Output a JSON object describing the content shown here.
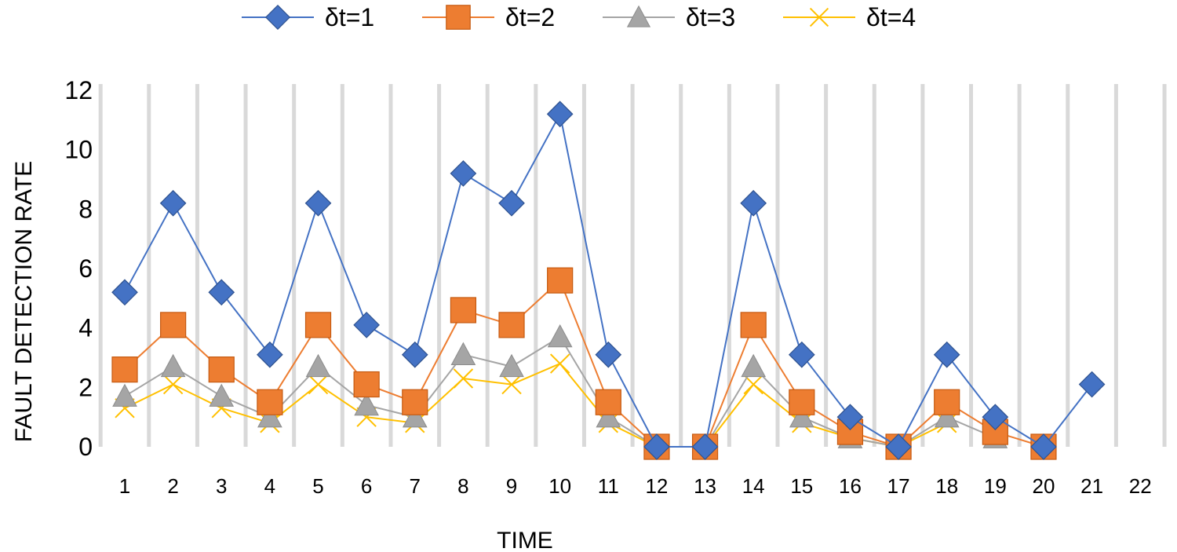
{
  "chart_data": {
    "type": "line",
    "title": "",
    "xlabel": "TIME",
    "ylabel": "FAULT DETECTION RATE",
    "ylim": [
      0,
      12
    ],
    "yticks": [
      0,
      2,
      4,
      6,
      8,
      10,
      12
    ],
    "x": [
      "1",
      "2",
      "3",
      "4",
      "5",
      "6",
      "7",
      "8",
      "9",
      "10",
      "11",
      "12",
      "13",
      "14",
      "15",
      "16",
      "17",
      "18",
      "19",
      "20",
      "21",
      "22"
    ],
    "grid": "vertical",
    "legend": "top-center",
    "series": [
      {
        "name": "δt=1",
        "color": "#4472C4",
        "marker": "diamond",
        "values": [
          5.2,
          8.2,
          5.2,
          3.1,
          8.2,
          4.1,
          3.1,
          9.2,
          8.2,
          11.2,
          3.1,
          0,
          0,
          8.2,
          3.1,
          1.0,
          0,
          3.1,
          1.0,
          0,
          2.1,
          null
        ]
      },
      {
        "name": "δt=2",
        "color": "#ED7D31",
        "marker": "square",
        "values": [
          2.6,
          4.1,
          2.6,
          1.5,
          4.1,
          2.1,
          1.5,
          4.6,
          4.1,
          5.6,
          1.5,
          0,
          0,
          4.1,
          1.5,
          0.5,
          0,
          1.5,
          0.5,
          0,
          null,
          null
        ]
      },
      {
        "name": "δt=3",
        "color": "#A5A5A5",
        "marker": "triangle",
        "values": [
          1.7,
          2.7,
          1.7,
          1.0,
          2.7,
          1.4,
          1.0,
          3.1,
          2.7,
          3.7,
          1.0,
          0,
          0,
          2.7,
          1.0,
          0.3,
          0,
          1.0,
          0.3,
          null,
          null,
          null
        ]
      },
      {
        "name": "δt=4",
        "color": "#FFC000",
        "marker": "x",
        "values": [
          1.3,
          2.1,
          1.3,
          0.8,
          2.1,
          1.0,
          0.8,
          2.3,
          2.1,
          2.8,
          0.8,
          0,
          0,
          2.1,
          0.8,
          0.3,
          0,
          0.8,
          null,
          null,
          null,
          null
        ]
      }
    ]
  }
}
